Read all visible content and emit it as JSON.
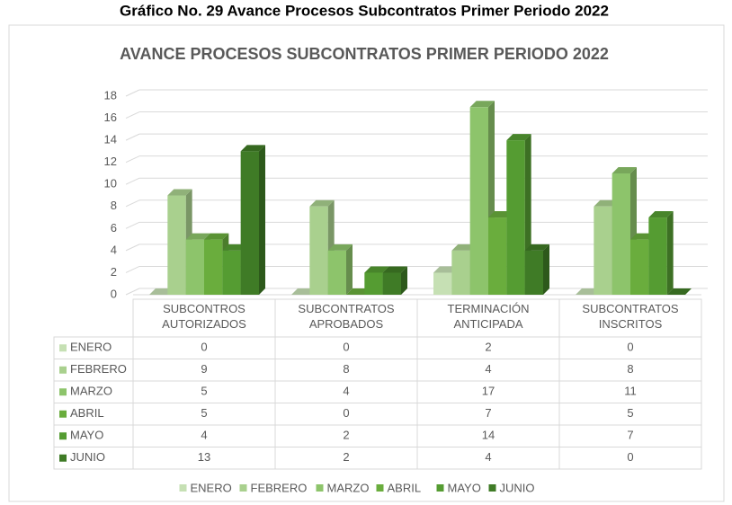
{
  "heading": "Gráfico No. 29 Avance Procesos Subcontratos Primer Periodo 2022",
  "chart_data": {
    "type": "bar",
    "title": "AVANCE PROCESOS SUBCONTRATOS PRIMER PERIODO 2022",
    "categories": [
      "SUBCONTROS AUTORIZADOS",
      "SUBCONTRATOS APROBADOS",
      "TERMINACIÓN ANTICIPADA",
      "SUBCONTRATOS INSCRITOS"
    ],
    "series": [
      {
        "name": "ENERO",
        "color": "#c6e0b4",
        "values": [
          0,
          0,
          2,
          0
        ]
      },
      {
        "name": "FEBRERO",
        "color": "#a9d08e",
        "values": [
          9,
          8,
          4,
          8
        ]
      },
      {
        "name": "MARZO",
        "color": "#8dc46b",
        "values": [
          5,
          4,
          17,
          11
        ]
      },
      {
        "name": "ABRIL",
        "color": "#6aad3d",
        "values": [
          5,
          0,
          7,
          5
        ]
      },
      {
        "name": "MAYO",
        "color": "#559c32",
        "values": [
          4,
          2,
          14,
          7
        ]
      },
      {
        "name": "JUNIO",
        "color": "#3f7b26",
        "values": [
          13,
          2,
          4,
          0
        ]
      }
    ],
    "ylim": [
      0,
      18
    ],
    "yticks": [
      0,
      2,
      4,
      6,
      8,
      10,
      12,
      14,
      16,
      18
    ],
    "grid": true,
    "legend": "bottom"
  }
}
